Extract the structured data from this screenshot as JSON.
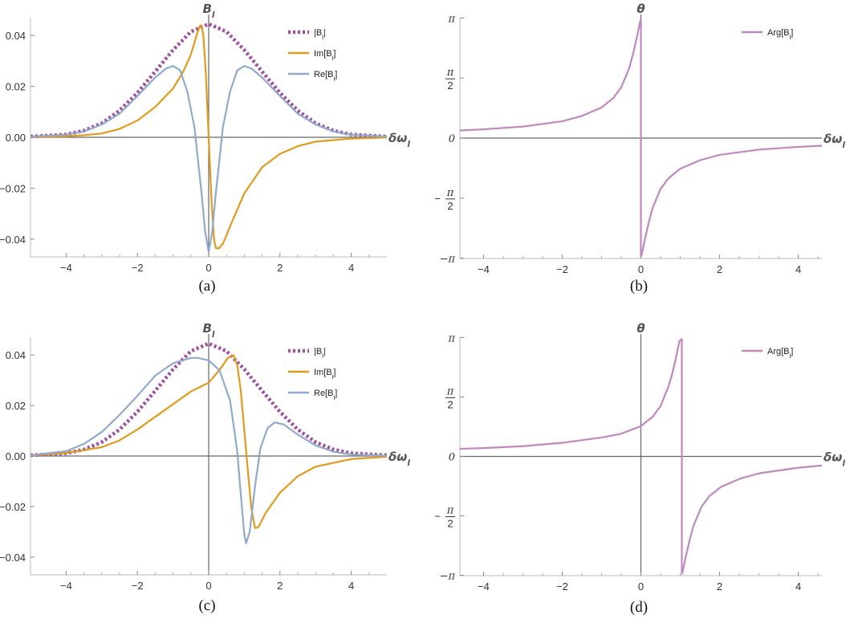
{
  "colors": {
    "abs": "#9f4ea0",
    "im": "#e09a1e",
    "re": "#8faacc",
    "arg": "#c088c0",
    "axis": "#666666"
  },
  "chart_data": [
    {
      "id": "a",
      "type": "line",
      "caption": "(a)",
      "xlabel": "δω",
      "xlabel_sub": "l",
      "ylabel": "B",
      "ylabel_sub": "l",
      "xlim": [
        -5,
        5
      ],
      "ylim": [
        -0.047,
        0.047
      ],
      "xticks": [
        {
          "v": -4,
          "t": "−4"
        },
        {
          "v": -2,
          "t": "−2"
        },
        {
          "v": 0,
          "t": "0"
        },
        {
          "v": 2,
          "t": "2"
        },
        {
          "v": 4,
          "t": "4"
        }
      ],
      "yticks": [
        {
          "v": -0.04,
          "t": "−0.04"
        },
        {
          "v": -0.02,
          "t": "−0.02"
        },
        {
          "v": 0,
          "t": "0.00"
        },
        {
          "v": 0.02,
          "t": "0.02"
        },
        {
          "v": 0.04,
          "t": "0.04"
        }
      ],
      "series": [
        {
          "name": "|B",
          "name_sub": "l",
          "name_end": "|",
          "style": "dot",
          "color": "#9f4ea0",
          "points": [
            [
              -5,
              0.0003
            ],
            [
              -4,
              0.0011
            ],
            [
              -3.5,
              0.0026
            ],
            [
              -3,
              0.0055
            ],
            [
              -2.5,
              0.0105
            ],
            [
              -2,
              0.0175
            ],
            [
              -1.5,
              0.0258
            ],
            [
              -1,
              0.0343
            ],
            [
              -0.5,
              0.0415
            ],
            [
              0,
              0.0445
            ],
            [
              0.5,
              0.0415
            ],
            [
              1,
              0.0343
            ],
            [
              1.5,
              0.0258
            ],
            [
              2,
              0.0175
            ],
            [
              2.5,
              0.0105
            ],
            [
              3,
              0.0055
            ],
            [
              3.5,
              0.0026
            ],
            [
              4,
              0.0011
            ],
            [
              5,
              0.0003
            ]
          ]
        },
        {
          "name": "Im[B",
          "name_sub": "l",
          "name_end": "]",
          "style": "solid",
          "color": "#e09a1e",
          "points": [
            [
              -5,
              0.0002
            ],
            [
              -4,
              0.0004
            ],
            [
              -3.5,
              0.0008
            ],
            [
              -3,
              0.0015
            ],
            [
              -2.5,
              0.0033
            ],
            [
              -2,
              0.0066
            ],
            [
              -1.5,
              0.0119
            ],
            [
              -1,
              0.0192
            ],
            [
              -0.7,
              0.0262
            ],
            [
              -0.5,
              0.0325
            ],
            [
              -0.35,
              0.0395
            ],
            [
              -0.25,
              0.0438
            ],
            [
              -0.2,
              0.044
            ],
            [
              -0.15,
              0.04
            ],
            [
              -0.08,
              0.025
            ],
            [
              0,
              0.0
            ],
            [
              0.08,
              -0.025
            ],
            [
              0.15,
              -0.04
            ],
            [
              0.2,
              -0.0435
            ],
            [
              0.28,
              -0.0437
            ],
            [
              0.4,
              -0.0418
            ],
            [
              0.6,
              -0.035
            ],
            [
              1,
              -0.022
            ],
            [
              1.5,
              -0.0118
            ],
            [
              2,
              -0.0065
            ],
            [
              2.5,
              -0.0035
            ],
            [
              3,
              -0.0017
            ],
            [
              4,
              -0.0005
            ],
            [
              5,
              -0.0001
            ]
          ]
        },
        {
          "name": "Re[B",
          "name_sub": "l",
          "name_end": "]",
          "style": "solid",
          "color": "#8faacc",
          "points": [
            [
              -5,
              0.0003
            ],
            [
              -4,
              0.001
            ],
            [
              -3.5,
              0.0023
            ],
            [
              -3,
              0.005
            ],
            [
              -2.5,
              0.0093
            ],
            [
              -2,
              0.0162
            ],
            [
              -1.5,
              0.0235
            ],
            [
              -1.2,
              0.027
            ],
            [
              -1,
              0.028
            ],
            [
              -0.8,
              0.0263
            ],
            [
              -0.6,
              0.018
            ],
            [
              -0.4,
              0.004
            ],
            [
              -0.2,
              -0.022
            ],
            [
              -0.1,
              -0.037
            ],
            [
              0,
              -0.045
            ],
            [
              0.1,
              -0.037
            ],
            [
              0.2,
              -0.022
            ],
            [
              0.4,
              0.004
            ],
            [
              0.6,
              0.018
            ],
            [
              0.8,
              0.0263
            ],
            [
              1,
              0.028
            ],
            [
              1.2,
              0.027
            ],
            [
              1.5,
              0.0235
            ],
            [
              2,
              0.0162
            ],
            [
              2.5,
              0.0093
            ],
            [
              3,
              0.005
            ],
            [
              3.5,
              0.0023
            ],
            [
              4,
              0.001
            ],
            [
              5,
              0.0003
            ]
          ]
        }
      ]
    },
    {
      "id": "b",
      "type": "line",
      "caption": "(b)",
      "xlabel": "δω",
      "xlabel_sub": "l",
      "ylabel": "θ",
      "ylabel_sub": "",
      "xlim": [
        -4.6,
        4.6
      ],
      "ylim": [
        -3.15,
        3.15
      ],
      "xticks": [
        {
          "v": -4,
          "t": "−4"
        },
        {
          "v": -2,
          "t": "−2"
        },
        {
          "v": 0,
          "t": "0"
        },
        {
          "v": 2,
          "t": "2"
        },
        {
          "v": 4,
          "t": "4"
        }
      ],
      "yticks": [
        {
          "v": -3.1416,
          "t": "−π"
        },
        {
          "v": -1.5708,
          "t": "−π/2"
        },
        {
          "v": 0,
          "t": "0"
        },
        {
          "v": 1.5708,
          "t": "π/2"
        },
        {
          "v": 3.1416,
          "t": "π"
        }
      ],
      "series": [
        {
          "name": "Arg[B",
          "name_sub": "l",
          "name_end": "]",
          "style": "solid",
          "color": "#c088c0",
          "points": [
            [
              -4.6,
              0.2
            ],
            [
              -4,
              0.23
            ],
            [
              -3,
              0.3
            ],
            [
              -2,
              0.44
            ],
            [
              -1.5,
              0.58
            ],
            [
              -1,
              0.8
            ],
            [
              -0.7,
              1.05
            ],
            [
              -0.5,
              1.33
            ],
            [
              -0.3,
              1.82
            ],
            [
              -0.2,
              2.2
            ],
            [
              -0.1,
              2.65
            ],
            [
              -0.02,
              3.05
            ],
            [
              0,
              3.1
            ],
            [
              0,
              -3.1
            ],
            [
              0.02,
              -3.05
            ],
            [
              0.1,
              -2.65
            ],
            [
              0.2,
              -2.2
            ],
            [
              0.3,
              -1.82
            ],
            [
              0.5,
              -1.33
            ],
            [
              0.7,
              -1.05
            ],
            [
              1,
              -0.8
            ],
            [
              1.5,
              -0.58
            ],
            [
              2,
              -0.44
            ],
            [
              3,
              -0.3
            ],
            [
              4,
              -0.23
            ],
            [
              4.6,
              -0.2
            ]
          ]
        }
      ]
    },
    {
      "id": "c",
      "type": "line",
      "caption": "(c)",
      "xlabel": "δω",
      "xlabel_sub": "l",
      "ylabel": "B",
      "ylabel_sub": "l",
      "xlim": [
        -5,
        5
      ],
      "ylim": [
        -0.047,
        0.047
      ],
      "xticks": [
        {
          "v": -4,
          "t": "−4"
        },
        {
          "v": -2,
          "t": "−2"
        },
        {
          "v": 0,
          "t": "0"
        },
        {
          "v": 2,
          "t": "2"
        },
        {
          "v": 4,
          "t": "4"
        }
      ],
      "yticks": [
        {
          "v": -0.04,
          "t": "−0.04"
        },
        {
          "v": -0.02,
          "t": "−0.02"
        },
        {
          "v": 0,
          "t": "0.00"
        },
        {
          "v": 0.02,
          "t": "0.02"
        },
        {
          "v": 0.04,
          "t": "0.04"
        }
      ],
      "series": [
        {
          "name": "|B",
          "name_sub": "l",
          "name_end": "|",
          "style": "dot",
          "color": "#9f4ea0",
          "points": [
            [
              -5,
              0.0003
            ],
            [
              -4,
              0.0011
            ],
            [
              -3.5,
              0.0026
            ],
            [
              -3,
              0.0055
            ],
            [
              -2.5,
              0.0105
            ],
            [
              -2,
              0.0175
            ],
            [
              -1.5,
              0.0258
            ],
            [
              -1,
              0.0343
            ],
            [
              -0.5,
              0.0415
            ],
            [
              0,
              0.0445
            ],
            [
              0.5,
              0.0415
            ],
            [
              1,
              0.0343
            ],
            [
              1.5,
              0.0258
            ],
            [
              2,
              0.0175
            ],
            [
              2.5,
              0.0105
            ],
            [
              3,
              0.0055
            ],
            [
              3.5,
              0.0026
            ],
            [
              4,
              0.0011
            ],
            [
              5,
              0.0003
            ]
          ]
        },
        {
          "name": "Im[B",
          "name_sub": "l",
          "name_end": "]",
          "style": "solid",
          "color": "#e09a1e",
          "points": [
            [
              -5,
              0.0002
            ],
            [
              -4,
              0.0012
            ],
            [
              -3,
              0.0035
            ],
            [
              -2.5,
              0.0062
            ],
            [
              -2,
              0.0105
            ],
            [
              -1.5,
              0.0155
            ],
            [
              -1,
              0.0205
            ],
            [
              -0.5,
              0.0255
            ],
            [
              0,
              0.029
            ],
            [
              0.3,
              0.034
            ],
            [
              0.55,
              0.039
            ],
            [
              0.7,
              0.0398
            ],
            [
              0.8,
              0.036
            ],
            [
              0.9,
              0.026
            ],
            [
              1,
              0.01
            ],
            [
              1.1,
              -0.006
            ],
            [
              1.2,
              -0.021
            ],
            [
              1.3,
              -0.0285
            ],
            [
              1.4,
              -0.028
            ],
            [
              1.6,
              -0.0225
            ],
            [
              2,
              -0.0145
            ],
            [
              2.5,
              -0.008
            ],
            [
              3,
              -0.0042
            ],
            [
              4,
              -0.0012
            ],
            [
              5,
              -0.0003
            ]
          ]
        },
        {
          "name": "Re[B",
          "name_sub": "l",
          "name_end": "]",
          "style": "solid",
          "color": "#8faacc",
          "points": [
            [
              -5,
              0.0003
            ],
            [
              -4,
              0.0019
            ],
            [
              -3.5,
              0.0048
            ],
            [
              -3,
              0.0095
            ],
            [
              -2.5,
              0.0163
            ],
            [
              -2,
              0.0238
            ],
            [
              -1.5,
              0.0318
            ],
            [
              -1,
              0.0367
            ],
            [
              -0.5,
              0.0388
            ],
            [
              -0.3,
              0.0388
            ],
            [
              0,
              0.0378
            ],
            [
              0.3,
              0.034
            ],
            [
              0.6,
              0.022
            ],
            [
              0.8,
              0.002
            ],
            [
              0.9,
              -0.015
            ],
            [
              1,
              -0.031
            ],
            [
              1.05,
              -0.0345
            ],
            [
              1.15,
              -0.03
            ],
            [
              1.3,
              -0.012
            ],
            [
              1.45,
              0.003
            ],
            [
              1.65,
              0.011
            ],
            [
              1.85,
              0.0133
            ],
            [
              2.1,
              0.0125
            ],
            [
              2.5,
              0.0085
            ],
            [
              3,
              0.0042
            ],
            [
              3.5,
              0.0017
            ],
            [
              4,
              0.0006
            ],
            [
              5,
              0.0001
            ]
          ]
        }
      ]
    },
    {
      "id": "d",
      "type": "line",
      "caption": "(d)",
      "xlabel": "δω",
      "xlabel_sub": "l",
      "ylabel": "θ",
      "ylabel_sub": "",
      "xlim": [
        -4.6,
        4.6
      ],
      "ylim": [
        -3.15,
        3.15
      ],
      "xticks": [
        {
          "v": -4,
          "t": "−4"
        },
        {
          "v": -2,
          "t": "−2"
        },
        {
          "v": 0,
          "t": "0"
        },
        {
          "v": 2,
          "t": "2"
        },
        {
          "v": 4,
          "t": "4"
        }
      ],
      "yticks": [
        {
          "v": -3.1416,
          "t": "−π"
        },
        {
          "v": -1.5708,
          "t": "−π/2"
        },
        {
          "v": 0,
          "t": "0"
        },
        {
          "v": 1.5708,
          "t": "π/2"
        },
        {
          "v": 3.1416,
          "t": "π"
        }
      ],
      "series": [
        {
          "name": "Arg[B",
          "name_sub": "l",
          "name_end": "]",
          "style": "solid",
          "color": "#c088c0",
          "points": [
            [
              -4.6,
              0.2
            ],
            [
              -4,
              0.22
            ],
            [
              -3,
              0.27
            ],
            [
              -2,
              0.36
            ],
            [
              -1,
              0.5
            ],
            [
              -0.5,
              0.6
            ],
            [
              0,
              0.8
            ],
            [
              0.3,
              1.05
            ],
            [
              0.5,
              1.33
            ],
            [
              0.7,
              1.85
            ],
            [
              0.8,
              2.2
            ],
            [
              0.9,
              2.65
            ],
            [
              0.98,
              3.05
            ],
            [
              1.04,
              3.1
            ],
            [
              1.04,
              -3.1
            ],
            [
              1.06,
              -3.05
            ],
            [
              1.14,
              -2.65
            ],
            [
              1.24,
              -2.2
            ],
            [
              1.34,
              -1.82
            ],
            [
              1.54,
              -1.33
            ],
            [
              1.74,
              -1.05
            ],
            [
              2.04,
              -0.8
            ],
            [
              2.54,
              -0.58
            ],
            [
              3.04,
              -0.44
            ],
            [
              4,
              -0.3
            ],
            [
              4.6,
              -0.24
            ]
          ]
        }
      ]
    }
  ]
}
